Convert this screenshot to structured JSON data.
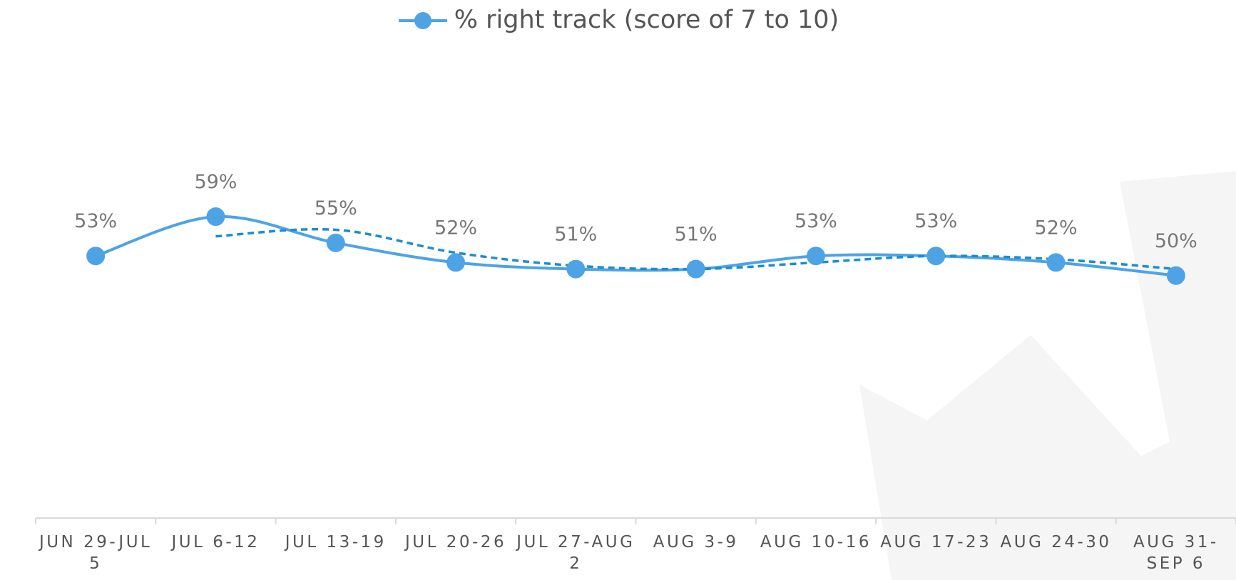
{
  "chart_data": {
    "type": "line",
    "categories": [
      "JUN 29-JUL 5",
      "JUL 6-12",
      "JUL 13-19",
      "JUL 20-26",
      "JUL 27-AUG 2",
      "AUG 3-9",
      "AUG 10-16",
      "AUG 17-23",
      "AUG 24-30",
      "AUG 31-SEP 6"
    ],
    "series": [
      {
        "name": "% right track (score of 7 to 10)",
        "color": "#4ea3e5",
        "values": [
          53,
          59,
          55,
          52,
          51,
          51,
          53,
          53,
          52,
          50
        ],
        "value_labels": [
          "53%",
          "59%",
          "55%",
          "52%",
          "51%",
          "51%",
          "53%",
          "53%",
          "52%",
          "50%"
        ]
      }
    ],
    "trendline": {
      "type": "moving_average",
      "period": 2,
      "color": "#1b8dd0",
      "values": [
        null,
        56,
        57,
        53.5,
        51.5,
        51,
        52,
        53,
        52.5,
        51
      ]
    },
    "ylim": [
      13,
      85
    ],
    "smooth": true,
    "legend": "top"
  }
}
